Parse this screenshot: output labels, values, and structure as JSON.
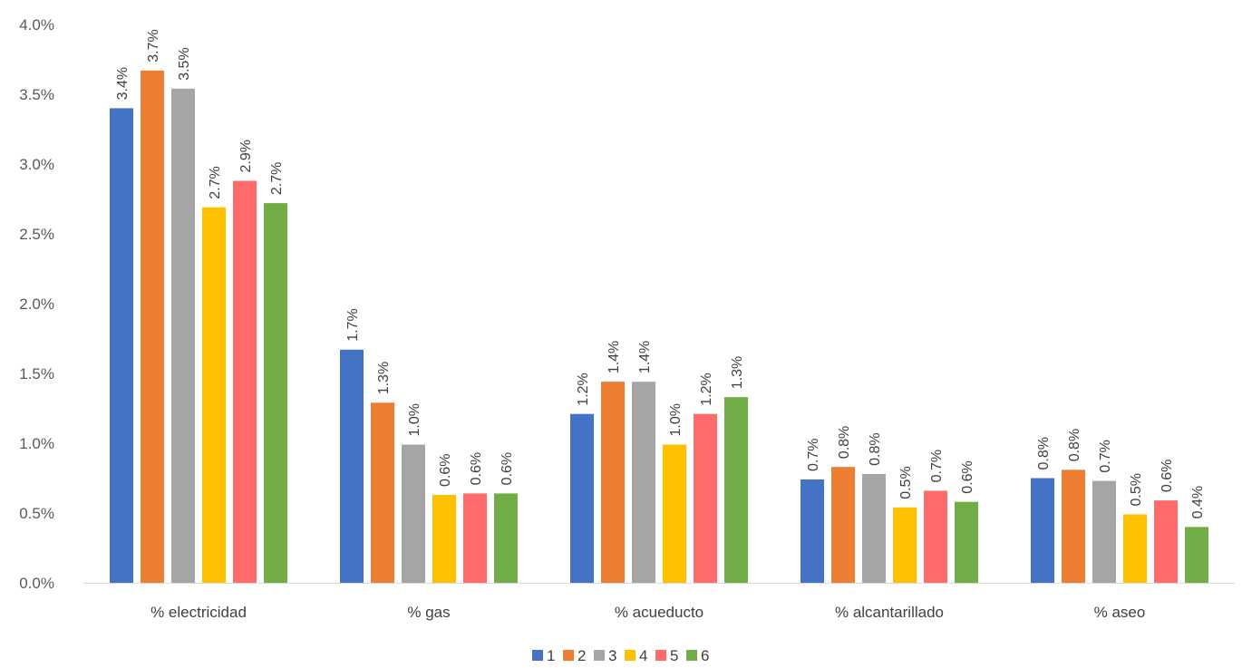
{
  "chart_data": {
    "type": "bar",
    "title": "",
    "xlabel": "",
    "ylabel": "",
    "categories": [
      "% electricidad",
      "% gas",
      "% acueducto",
      "% alcantarillado",
      "% aseo"
    ],
    "ylim": [
      0,
      0.04
    ],
    "y_ticks": [
      "0.0%",
      "0.5%",
      "1.0%",
      "1.5%",
      "2.0%",
      "2.5%",
      "3.0%",
      "3.5%",
      "4.0%"
    ],
    "grid": false,
    "legend_position": "bottom",
    "series": [
      {
        "name": "1",
        "color": "#4472C4",
        "values": [
          0.034,
          0.0167,
          0.0121,
          0.0074,
          0.0075
        ],
        "labels": [
          "3.4%",
          "1.7%",
          "1.2%",
          "0.7%",
          "0.8%"
        ]
      },
      {
        "name": "2",
        "color": "#ED7D31",
        "values": [
          0.0367,
          0.0129,
          0.0144,
          0.0083,
          0.0081
        ],
        "labels": [
          "3.7%",
          "1.3%",
          "1.4%",
          "0.8%",
          "0.8%"
        ]
      },
      {
        "name": "3",
        "color": "#A5A5A5",
        "values": [
          0.0354,
          0.0099,
          0.0144,
          0.0078,
          0.0073
        ],
        "labels": [
          "3.5%",
          "1.0%",
          "1.4%",
          "0.8%",
          "0.7%"
        ]
      },
      {
        "name": "4",
        "color": "#FFC000",
        "values": [
          0.0269,
          0.0063,
          0.0099,
          0.0054,
          0.0049
        ],
        "labels": [
          "2.7%",
          "0.6%",
          "1.0%",
          "0.5%",
          "0.5%"
        ]
      },
      {
        "name": "5",
        "color": "#FF6B6B",
        "values": [
          0.0288,
          0.0064,
          0.0121,
          0.0066,
          0.0059
        ],
        "labels": [
          "2.9%",
          "0.6%",
          "1.2%",
          "0.7%",
          "0.6%"
        ]
      },
      {
        "name": "6",
        "color": "#70AD47",
        "values": [
          0.0272,
          0.0064,
          0.0133,
          0.0058,
          0.004
        ],
        "labels": [
          "2.7%",
          "0.6%",
          "1.3%",
          "0.6%",
          "0.4%"
        ]
      }
    ]
  }
}
